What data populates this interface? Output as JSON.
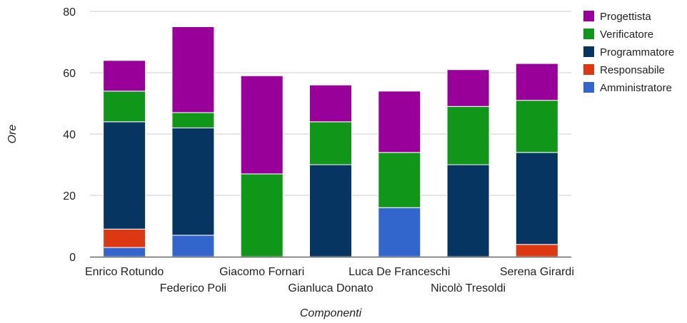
{
  "chart_data": {
    "type": "bar",
    "stacked": true,
    "xlabel": "Componenti",
    "ylabel": "Ore",
    "ylim": [
      0,
      80
    ],
    "yticks": [
      0,
      20,
      40,
      60,
      80
    ],
    "grid": true,
    "legend_position": "right",
    "categories": [
      "Enrico Rotundo",
      "Federico Poli",
      "Giacomo Fornari",
      "Gianluca Donato",
      "Luca De Franceschi",
      "Nicolò Tresoldi",
      "Serena Girardi"
    ],
    "series": [
      {
        "name": "Amministratore",
        "color": "#3366cc",
        "values": [
          3,
          7,
          0,
          0,
          16,
          0,
          0
        ]
      },
      {
        "name": "Responsabile",
        "color": "#dc3912",
        "values": [
          6,
          0,
          0,
          0,
          0,
          0,
          4
        ]
      },
      {
        "name": "Programmatore",
        "color": "#063561",
        "values": [
          35,
          35,
          0,
          30,
          0,
          30,
          30
        ]
      },
      {
        "name": "Verificatore",
        "color": "#109618",
        "values": [
          10,
          5,
          27,
          14,
          18,
          19,
          17
        ]
      },
      {
        "name": "Progettista",
        "color": "#990099",
        "values": [
          10,
          28,
          32,
          12,
          20,
          12,
          12
        ]
      }
    ],
    "legend_order": [
      "Progettista",
      "Verificatore",
      "Programmatore",
      "Responsabile",
      "Amministratore"
    ]
  }
}
